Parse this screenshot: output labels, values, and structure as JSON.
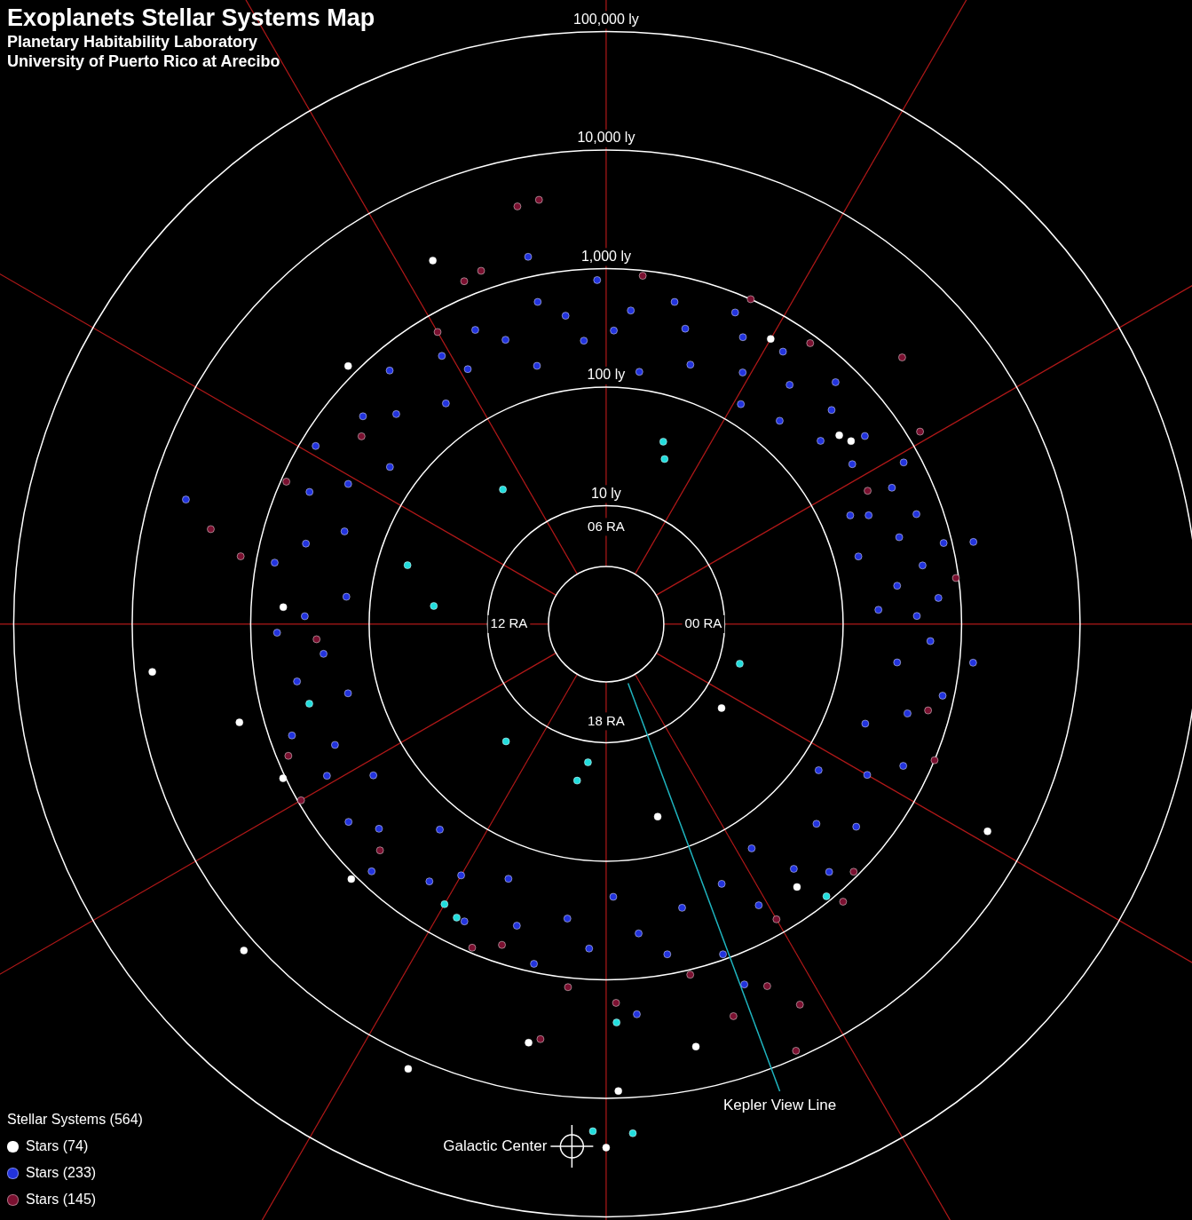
{
  "chart_data": {
    "type": "polar_scatter",
    "title": "Exoplanets Stellar Systems Map",
    "subtitle": [
      "Planetary Habitability Laboratory",
      "University of Puerto Rico at Arecibo"
    ],
    "log": true,
    "grid": true,
    "rlim": [
      1,
      100000
    ],
    "rticks": [
      {
        "value": 10,
        "label": "10 ly"
      },
      {
        "value": 100,
        "label": "100 ly"
      },
      {
        "value": 1000,
        "label": "1,000 ly"
      },
      {
        "value": 10000,
        "label": "10,000 ly"
      },
      {
        "value": 100000,
        "label": "100,000 ly"
      }
    ],
    "ra_ticks": [
      {
        "value": 0,
        "label": "00 RA"
      },
      {
        "value": 6,
        "label": "06 RA"
      },
      {
        "value": 12,
        "label": "12 RA"
      },
      {
        "value": 18,
        "label": "18 RA"
      }
    ],
    "ra_grid": [
      0,
      2,
      4,
      6,
      8,
      10,
      12,
      14,
      16,
      18,
      20,
      22
    ],
    "legend": "bottom-left",
    "legend_title": "Stellar Systems (564)",
    "series": [
      {
        "name": "Stars (74)",
        "color": "#ffffff",
        "marker": "circle",
        "ra": [
          7.7,
          12.4,
          13.0,
          11.8,
          16.4,
          17.3,
          18.8,
          18.1,
          18.0,
          22.1,
          2.45,
          2.6,
          19.0,
          21.6,
          13.7,
          9.0,
          4.0,
          15.0,
          20.4,
          14.8
        ],
        "values": [
          2500,
          7100,
          1600,
          535,
          12800,
          3900,
          4400,
          8700,
          26000,
          4600,
          380,
          340,
          48,
          16,
          1050,
          1200,
          600,
          1100,
          550,
          13000
        ]
      },
      {
        "name": "Stars (233)",
        "color": "#2233dd",
        "marker": "circle",
        "ra": [
          0.1,
          0.3,
          0.5,
          0.7,
          0.9,
          1.1,
          1.3,
          1.5,
          1.7,
          1.9,
          0.2,
          1.0,
          1.6,
          2.2,
          2.4,
          2.7,
          2.9,
          3.1,
          3.3,
          3.5,
          3.8,
          3.9,
          4.1,
          4.3,
          4.5,
          4.8,
          5.0,
          5.2,
          5.5,
          5.7,
          5.9,
          6.1,
          6.3,
          6.5,
          6.8,
          7.0,
          7.3,
          7.6,
          7.9,
          8.1,
          8.4,
          8.7,
          9.0,
          9.3,
          9.6,
          9.9,
          10.1,
          10.4,
          10.7,
          11.0,
          11.3,
          11.6,
          11.9,
          12.1,
          12.4,
          12.7,
          13.0,
          13.3,
          13.6,
          13.9,
          14.2,
          14.5,
          14.8,
          15.1,
          15.4,
          15.7,
          16.0,
          16.3,
          16.6,
          16.9,
          17.2,
          17.5,
          17.8,
          18.1,
          18.4,
          18.7,
          19.0,
          19.3,
          19.6,
          19.9,
          20.2,
          20.5,
          20.8,
          21.1,
          21.4,
          21.7,
          22.0,
          22.3,
          22.6,
          22.9,
          23.2,
          23.5,
          23.8,
          10.9,
          6.8,
          0.84,
          23.6,
          19.4,
          18.3
        ],
        "values": [
          420,
          650,
          300,
          520,
          850,
          380,
          600,
          250,
          470,
          720,
          200,
          160,
          180,
          300,
          500,
          240,
          420,
          650,
          180,
          350,
          550,
          150,
          260,
          480,
          700,
          200,
          380,
          600,
          140,
          450,
          300,
          800,
          250,
          420,
          600,
          180,
          350,
          520,
          280,
          450,
          200,
          650,
          320,
          500,
          180,
          750,
          300,
          550,
          220,
          420,
          700,
          160,
          350,
          600,
          250,
          450,
          180,
          650,
          320,
          480,
          220,
          550,
          380,
          750,
          170,
          430,
          280,
          600,
          200,
          450,
          850,
          320,
          550,
          200,
          420,
          680,
          300,
          900,
          250,
          500,
          180,
          400,
          650,
          280,
          520,
          150,
          350,
          600,
          220,
          450,
          800,
          300,
          550,
          5000,
          1470,
          1500,
          1300,
          1800,
          2000
        ]
      },
      {
        "name": "Stars (145)",
        "color": "#7a1030",
        "marker": "circle",
        "ra": [
          7.5,
          7.3,
          6.8,
          6.6,
          2.8,
          2.1,
          18.1,
          19.8,
          19.6,
          19.6,
          11.1,
          11.3,
          14.0,
          5.6,
          8.0,
          9.5,
          12.2,
          13.5,
          15.0,
          16.5,
          17.6,
          18.9,
          20.0,
          21.0,
          22.5,
          23.0,
          0.5,
          1.8,
          3.6,
          4.4,
          19.2,
          17.4,
          10.4,
          16.8,
          20.7
        ],
        "values": [
          1350,
          1450,
          4000,
          4200,
          2300,
          1280,
          1570,
          4000,
          8700,
          2200,
          2700,
          1370,
          940,
          900,
          700,
          400,
          280,
          800,
          500,
          900,
          1200,
          1100,
          750,
          900,
          1000,
          650,
          950,
          300,
          850,
          1000,
          3000,
          3500,
          900,
          700,
          1200
        ]
      },
      {
        "name": null,
        "color": "#22dddd",
        "marker": "circle",
        "ra": [
          4.84,
          4.7,
          8.5,
          10.9,
          11.6,
          22.9,
          15.3,
          17.5,
          17.3,
          13.0,
          16.0,
          18.1,
          17.9,
          18.2,
          16.2,
          20.6
        ],
        "values": [
          41,
          30,
          27,
          56,
          29,
          15,
          20,
          15,
          22,
          392,
          535,
          2300,
          19000,
          20000,
          600,
          900
        ]
      }
    ],
    "annotations": [
      {
        "type": "line",
        "text": "Kepler View Line",
        "ra": 19.36,
        "from": 3.4,
        "to": 16000,
        "color": "#1fb5c0"
      },
      {
        "type": "crosshair",
        "text": "Galactic Center",
        "ra": 17.75,
        "distance": 26000,
        "color": "#ffffff"
      }
    ]
  }
}
